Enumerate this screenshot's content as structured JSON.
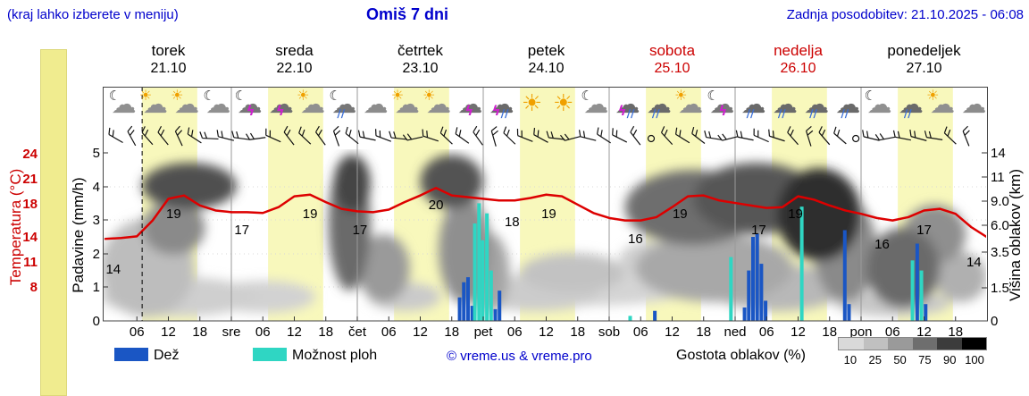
{
  "header": {
    "hint": "(kraj lahko izberete v meniju)",
    "title": "Omiš 7 dni",
    "updated": "Zadnja posodobitev: 21.10.2025 - 06:08"
  },
  "days": [
    {
      "name": "torek",
      "date": "21.10",
      "weekend": false
    },
    {
      "name": "sreda",
      "date": "22.10",
      "weekend": false
    },
    {
      "name": "četrtek",
      "date": "23.10",
      "weekend": false
    },
    {
      "name": "petek",
      "date": "24.10",
      "weekend": false
    },
    {
      "name": "sobota",
      "date": "25.10",
      "weekend": true
    },
    {
      "name": "nedelja",
      "date": "26.10",
      "weekend": true
    },
    {
      "name": "ponedeljek",
      "date": "27.10",
      "weekend": false
    }
  ],
  "axes": {
    "temp_label": "Temperatura (°C)",
    "temp_ticks": [
      "24",
      "21",
      "18",
      "14",
      "11",
      "8"
    ],
    "precip_label": "Padavine (mm/h)",
    "precip_ticks": [
      "5",
      "4",
      "3",
      "2",
      "1",
      "0"
    ],
    "cloud_label": "Višina oblakov (km)",
    "cloud_ticks": [
      "14",
      "11",
      "9.0",
      "6.0",
      "3.5",
      "1.5",
      "0"
    ],
    "time_ticks": [
      "06",
      "12",
      "18",
      "sre",
      "06",
      "12",
      "18",
      "čet",
      "06",
      "12",
      "18",
      "pet",
      "06",
      "12",
      "18",
      "sob",
      "06",
      "12",
      "18",
      "ned",
      "06",
      "12",
      "18",
      "pon",
      "06",
      "12",
      "18"
    ]
  },
  "legend": {
    "rain": "Dež",
    "showers": "Možnost ploh",
    "copyright": "© vreme.us & vreme.pro",
    "cloud_density": "Gostota oblakov (%)",
    "density_ticks": [
      "10",
      "25",
      "50",
      "75",
      "90",
      "100"
    ]
  },
  "colors": {
    "accent_blue": "#0000cc",
    "weekend_red": "#cc0000",
    "temp_line": "#dd0000",
    "rain_bar": "#1a56c4",
    "shower_bar": "#2fd6c3",
    "daylight_band": "#f8f8bc",
    "colorbar_yellow": "#f0ec8f",
    "density_scale": [
      "#d9d9d9",
      "#c0c0c0",
      "#9a9a9a",
      "#6e6e6e",
      "#3c3c3c",
      "#000000"
    ]
  },
  "chart_data": {
    "type": "line",
    "title": "Omiš 7 dni",
    "x_axis": {
      "start": "torek 21.10 00:00",
      "hours_total": 168,
      "tick_step_hours": 6
    },
    "ylim_precip_mmh": [
      0,
      5
    ],
    "now_marker_hour": 7,
    "temperature": {
      "name": "Temperatura",
      "unit": "°C",
      "start_hour": 0,
      "step_hours": 3,
      "values": [
        13.8,
        13.9,
        14.1,
        16.0,
        18.6,
        19.0,
        17.8,
        17.2,
        17.0,
        17.0,
        16.9,
        17.6,
        18.9,
        19.1,
        18.2,
        17.4,
        17.1,
        17.0,
        17.3,
        18.2,
        19.0,
        19.9,
        19.0,
        18.8,
        18.6,
        18.4,
        18.4,
        18.7,
        19.1,
        18.9,
        17.9,
        16.9,
        16.3,
        16.0,
        16.0,
        16.4,
        17.6,
        18.9,
        19.0,
        18.4,
        18.1,
        17.8,
        17.5,
        17.6,
        18.9,
        18.5,
        17.8,
        17.2,
        16.8,
        16.3,
        16.0,
        16.4,
        17.2,
        17.4,
        16.8,
        15.2,
        14.0
      ]
    },
    "temp_point_labels": [
      [
        1.5,
        14,
        28
      ],
      [
        13,
        19,
        12
      ],
      [
        26,
        17,
        12
      ],
      [
        39,
        19,
        12
      ],
      [
        48.5,
        17,
        12
      ],
      [
        63,
        20,
        12
      ],
      [
        77.5,
        18,
        12
      ],
      [
        84.5,
        19,
        12
      ],
      [
        101,
        16,
        12
      ],
      [
        109.5,
        19,
        12
      ],
      [
        124.5,
        17,
        12
      ],
      [
        131.5,
        19,
        12
      ],
      [
        148,
        16,
        18
      ],
      [
        156,
        17,
        12
      ],
      [
        165.5,
        14,
        20
      ]
    ],
    "precipitation_bars": [
      [
        67.5,
        0.7,
        "rain"
      ],
      [
        68.3,
        1.15,
        "rain"
      ],
      [
        69.1,
        1.3,
        "rain"
      ],
      [
        69.9,
        0.45,
        "rain"
      ],
      [
        70.4,
        2.9,
        "shower"
      ],
      [
        71.2,
        3.5,
        "shower"
      ],
      [
        71.9,
        2.4,
        "shower"
      ],
      [
        72.7,
        3.2,
        "shower"
      ],
      [
        73.5,
        1.5,
        "shower"
      ],
      [
        74.3,
        0.35,
        "rain"
      ],
      [
        75.1,
        0.9,
        "rain"
      ],
      [
        100,
        0.15,
        "shower"
      ],
      [
        104.7,
        0.3,
        "rain"
      ],
      [
        119.2,
        1.9,
        "shower"
      ],
      [
        121.8,
        0.4,
        "rain"
      ],
      [
        122.6,
        1.5,
        "rain"
      ],
      [
        123.4,
        2.5,
        "rain"
      ],
      [
        124.2,
        2.6,
        "rain"
      ],
      [
        125.0,
        1.7,
        "rain"
      ],
      [
        125.8,
        0.6,
        "rain"
      ],
      [
        132.7,
        3.4,
        "shower"
      ],
      [
        140.9,
        2.7,
        "rain"
      ],
      [
        141.7,
        0.5,
        "rain"
      ],
      [
        153.8,
        1.8,
        "shower"
      ],
      [
        154.7,
        2.3,
        "rain"
      ],
      [
        155.5,
        1.5,
        "shower"
      ],
      [
        156.3,
        0.5,
        "rain"
      ]
    ],
    "icons": [
      "moon-cloud",
      "sun-cloud",
      "sun-cloud",
      "moon-cloud",
      "moon-storm",
      "storm",
      "sun-cloud",
      "moon-rain",
      "cloud",
      "sun-cloud",
      "sun-cloud",
      "storm",
      "storm-rain",
      "sun",
      "sun",
      "moon-cloud",
      "storm-rain",
      "rain",
      "sun-cloud",
      "moon-storm",
      "rain",
      "rain",
      "rain",
      "rain",
      "moon-cloud",
      "rain",
      "sun-cloud",
      "cloud"
    ],
    "cloud_cover_blobs": [
      [
        8,
        300,
        9,
        55,
        "#bdbdbd"
      ],
      [
        16,
        208,
        9,
        26,
        "#4f4f4f"
      ],
      [
        13,
        255,
        6,
        30,
        "#8a8a8a"
      ],
      [
        14,
        332,
        15,
        22,
        "#cfcfcf"
      ],
      [
        30,
        332,
        10,
        18,
        "#d2d2d2"
      ],
      [
        46.5,
        250,
        4,
        75,
        "#6a6a6a"
      ],
      [
        47,
        205,
        3.5,
        32,
        "#454545"
      ],
      [
        53,
        300,
        5,
        38,
        "#9a9a9a"
      ],
      [
        57,
        332,
        7,
        16,
        "#cacaca"
      ],
      [
        66,
        203,
        6,
        30,
        "#525252"
      ],
      [
        68.5,
        280,
        5,
        60,
        "#8f8f8f"
      ],
      [
        73,
        305,
        4,
        45,
        "#a5a5a5"
      ],
      [
        82,
        330,
        12,
        18,
        "#cccccc"
      ],
      [
        89,
        305,
        10,
        22,
        "#c2c2c2"
      ],
      [
        92,
        322,
        20,
        20,
        "#d4d4d4"
      ],
      [
        104,
        290,
        6,
        20,
        "#cfcfcf"
      ],
      [
        112,
        232,
        13,
        42,
        "#6e6e6e"
      ],
      [
        116,
        300,
        15,
        38,
        "#a8a8a8"
      ],
      [
        124,
        222,
        12,
        40,
        "#565656"
      ],
      [
        128,
        322,
        13,
        26,
        "#b8b8b8"
      ],
      [
        136,
        240,
        8,
        52,
        "#2f2f2f"
      ],
      [
        141,
        280,
        6,
        58,
        "#8a8a8a"
      ],
      [
        150,
        340,
        11,
        14,
        "#c8c8c8"
      ],
      [
        152,
        300,
        7,
        45,
        "#6a6a6a"
      ],
      [
        158,
        262,
        6,
        33,
        "#8f8f8f"
      ],
      [
        163,
        310,
        5,
        28,
        "#b0b0b0"
      ]
    ]
  }
}
